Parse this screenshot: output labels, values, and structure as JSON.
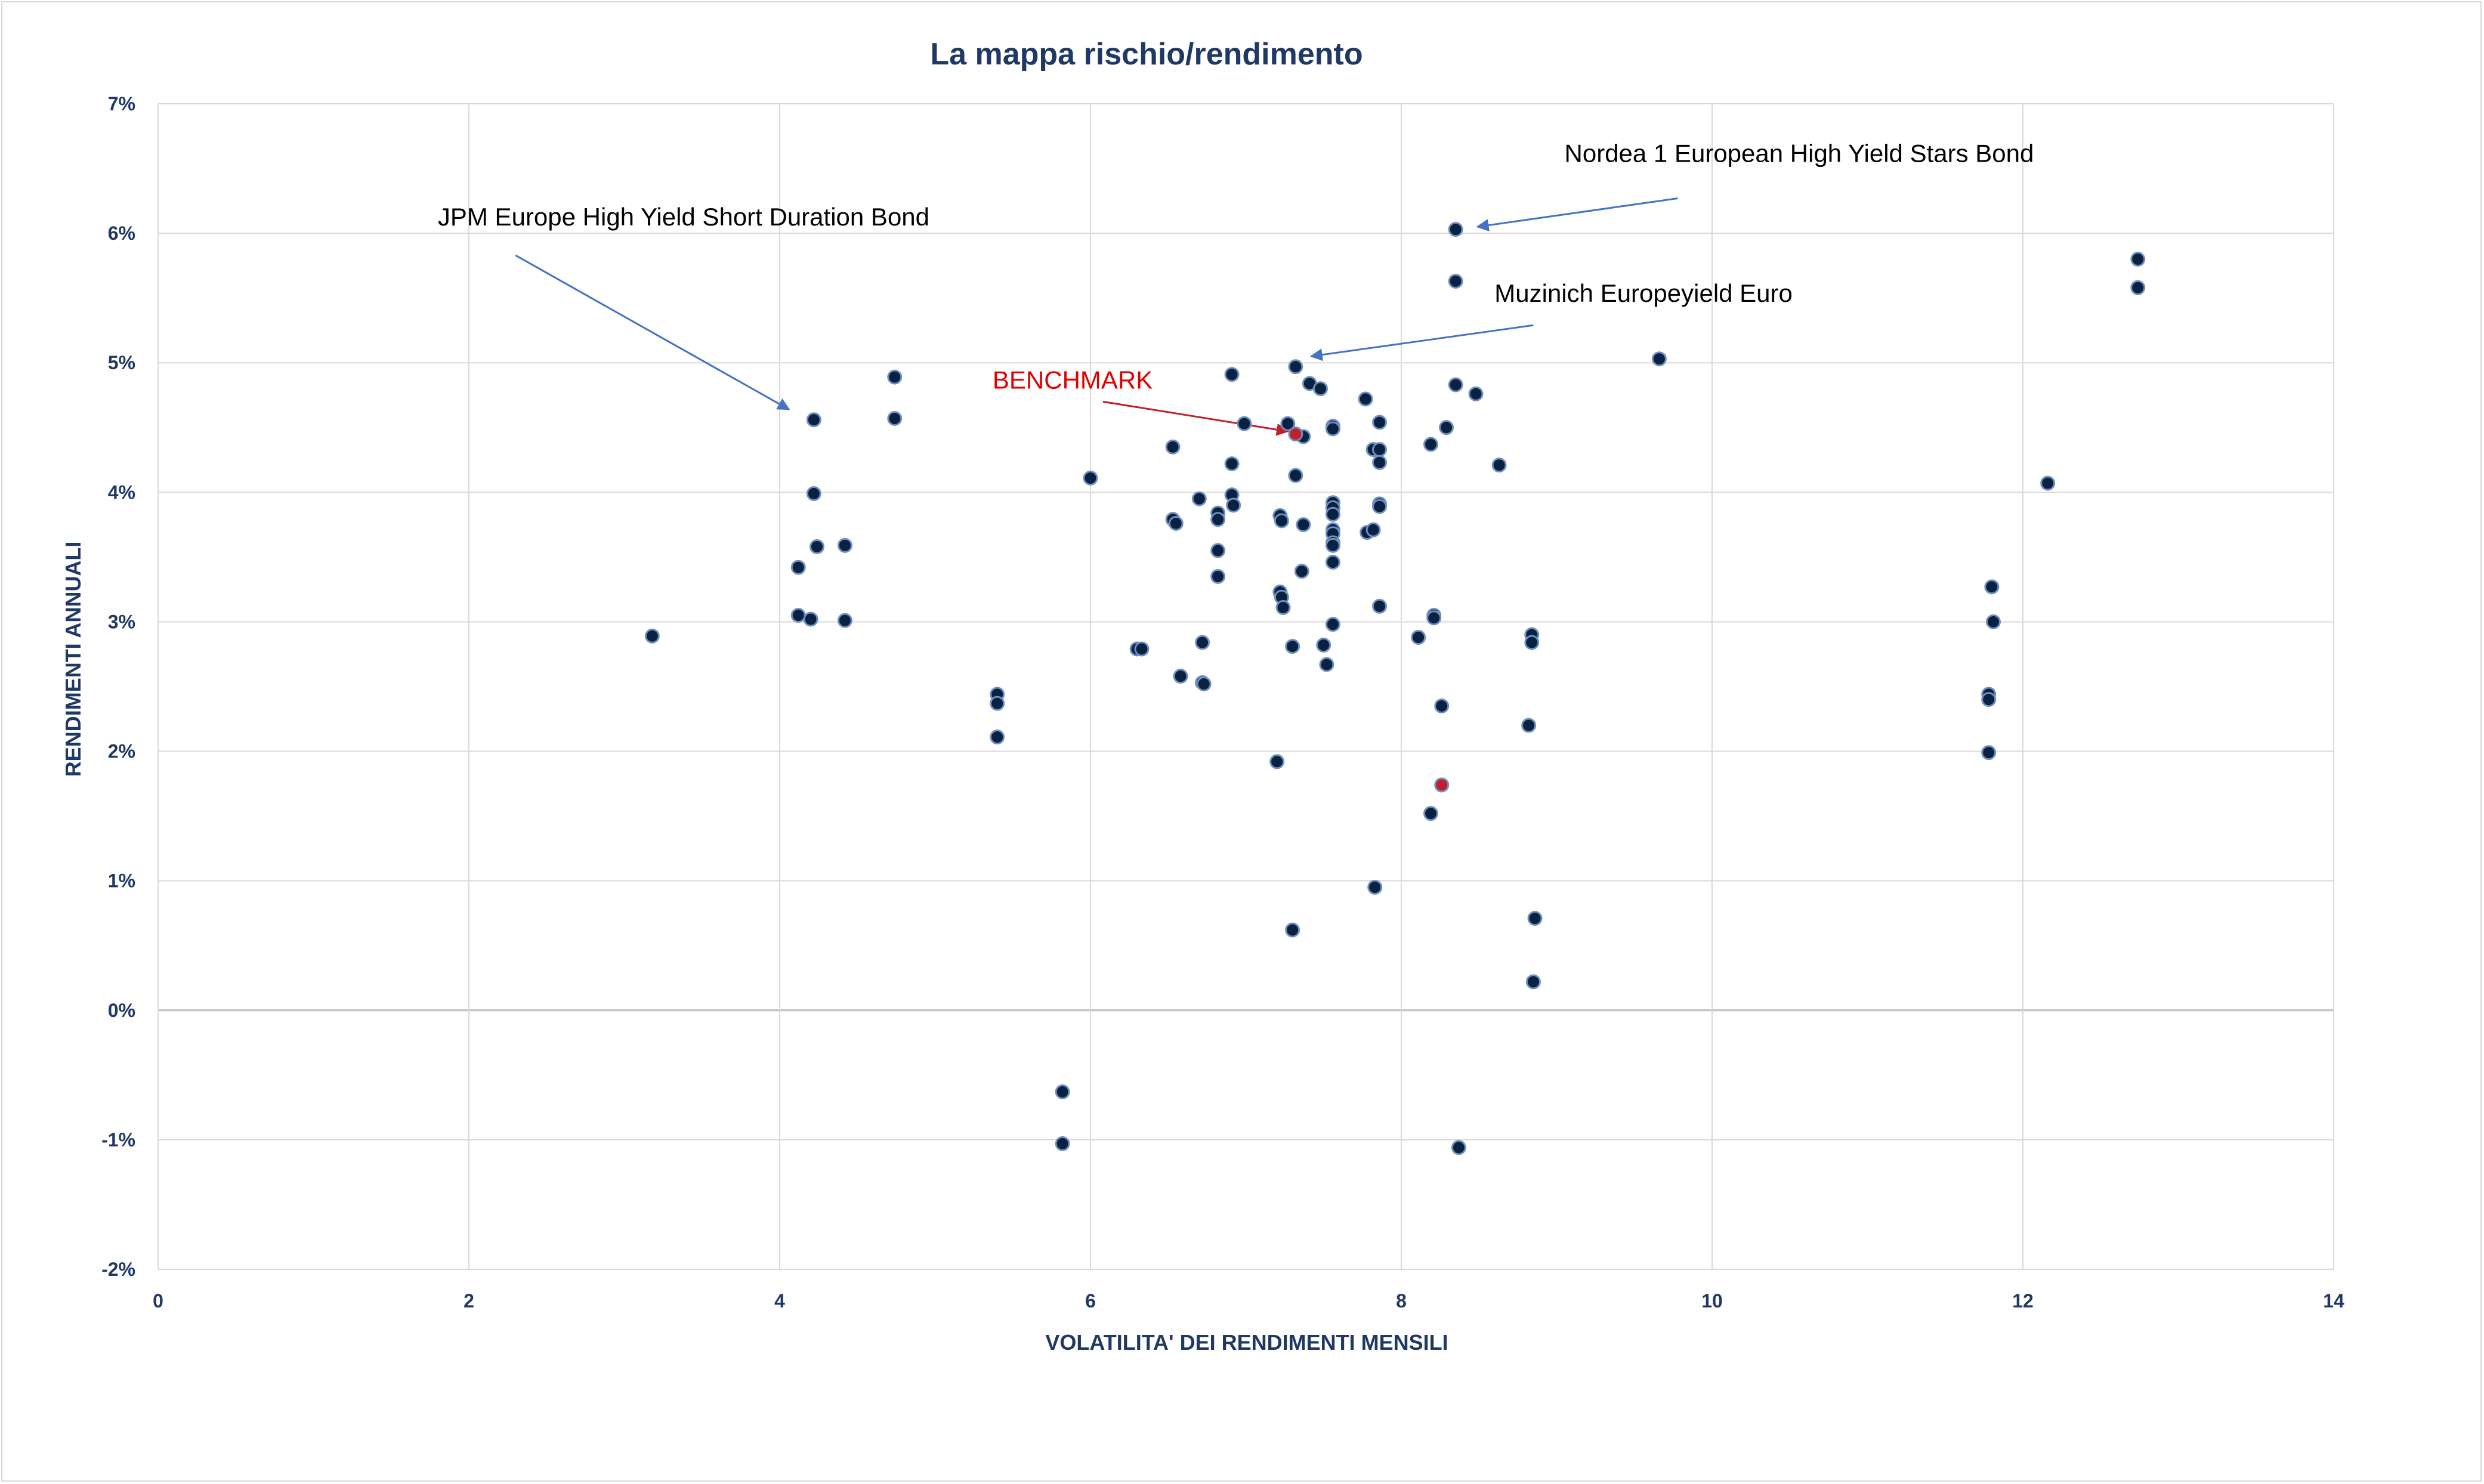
{
  "chart_data": {
    "type": "scatter",
    "title": "La mappa rischio/rendimento",
    "xlabel": "VOLATILITA' DEI RENDIMENTI MENSILI",
    "ylabel": "RENDIMENTI ANNUALI",
    "xlim": [
      0,
      14
    ],
    "ylim": [
      -2,
      7
    ],
    "x_ticks": [
      0,
      2,
      4,
      6,
      8,
      10,
      12,
      14
    ],
    "x_tick_labels": [
      "0",
      "2",
      "4",
      "6",
      "8",
      "10",
      "12",
      "14"
    ],
    "y_ticks": [
      -2,
      -1,
      0,
      1,
      2,
      3,
      4,
      5,
      6,
      7
    ],
    "y_tick_labels": [
      "-2%",
      "-1%",
      "0%",
      "1%",
      "2%",
      "3%",
      "4%",
      "5%",
      "6%",
      "7%"
    ],
    "grid": true,
    "legend": "none",
    "colors": {
      "point_fill": "#0b2140",
      "point_edge": "#6f8fc2",
      "highlight_fill": "#c0202a",
      "gridline": "#d9d9d9",
      "zero_line": "#bfbfbf",
      "axis_text": "#1f3864",
      "arrow_blue": "#4472c4",
      "arrow_red": "#c0202a",
      "annotation_red": "#e00000"
    },
    "points": [
      {
        "x": 3.18,
        "y": 2.89
      },
      {
        "x": 4.12,
        "y": 3.42
      },
      {
        "x": 4.12,
        "y": 3.05
      },
      {
        "x": 4.2,
        "y": 3.02
      },
      {
        "x": 4.22,
        "y": 4.56
      },
      {
        "x": 4.22,
        "y": 3.99
      },
      {
        "x": 4.24,
        "y": 3.58
      },
      {
        "x": 4.42,
        "y": 3.59
      },
      {
        "x": 4.42,
        "y": 3.01
      },
      {
        "x": 4.74,
        "y": 4.89
      },
      {
        "x": 4.74,
        "y": 4.57
      },
      {
        "x": 5.4,
        "y": 2.44
      },
      {
        "x": 5.4,
        "y": 2.37
      },
      {
        "x": 5.4,
        "y": 2.11
      },
      {
        "x": 5.82,
        "y": -0.63
      },
      {
        "x": 5.82,
        "y": -1.03
      },
      {
        "x": 6.0,
        "y": 4.11
      },
      {
        "x": 6.3,
        "y": 2.79
      },
      {
        "x": 6.33,
        "y": 2.79
      },
      {
        "x": 6.53,
        "y": 4.35
      },
      {
        "x": 6.53,
        "y": 3.79
      },
      {
        "x": 6.55,
        "y": 3.76
      },
      {
        "x": 6.58,
        "y": 2.58
      },
      {
        "x": 6.7,
        "y": 3.95
      },
      {
        "x": 6.72,
        "y": 2.84
      },
      {
        "x": 6.72,
        "y": 2.53
      },
      {
        "x": 6.73,
        "y": 2.52
      },
      {
        "x": 6.82,
        "y": 3.84
      },
      {
        "x": 6.82,
        "y": 3.79
      },
      {
        "x": 6.82,
        "y": 3.55
      },
      {
        "x": 6.82,
        "y": 3.35
      },
      {
        "x": 6.91,
        "y": 4.91
      },
      {
        "x": 6.91,
        "y": 4.22
      },
      {
        "x": 6.91,
        "y": 3.98
      },
      {
        "x": 6.92,
        "y": 3.9
      },
      {
        "x": 6.99,
        "y": 4.53
      },
      {
        "x": 7.2,
        "y": 1.92
      },
      {
        "x": 7.22,
        "y": 3.82
      },
      {
        "x": 7.23,
        "y": 3.78
      },
      {
        "x": 7.22,
        "y": 3.23
      },
      {
        "x": 7.23,
        "y": 3.19
      },
      {
        "x": 7.24,
        "y": 3.11
      },
      {
        "x": 7.27,
        "y": 4.53
      },
      {
        "x": 7.3,
        "y": 2.81
      },
      {
        "x": 7.3,
        "y": 0.62
      },
      {
        "x": 7.32,
        "y": 4.97
      },
      {
        "x": 7.32,
        "y": 4.13
      },
      {
        "x": 7.37,
        "y": 4.43
      },
      {
        "x": 7.37,
        "y": 3.75
      },
      {
        "x": 7.36,
        "y": 3.39
      },
      {
        "x": 7.41,
        "y": 4.84
      },
      {
        "x": 7.48,
        "y": 4.8
      },
      {
        "x": 7.5,
        "y": 2.82
      },
      {
        "x": 7.52,
        "y": 2.67
      },
      {
        "x": 7.56,
        "y": 4.51
      },
      {
        "x": 7.56,
        "y": 4.49
      },
      {
        "x": 7.56,
        "y": 3.92
      },
      {
        "x": 7.56,
        "y": 3.88
      },
      {
        "x": 7.56,
        "y": 3.83
      },
      {
        "x": 7.56,
        "y": 3.71
      },
      {
        "x": 7.56,
        "y": 3.68
      },
      {
        "x": 7.56,
        "y": 3.61
      },
      {
        "x": 7.56,
        "y": 3.59
      },
      {
        "x": 7.56,
        "y": 3.46
      },
      {
        "x": 7.56,
        "y": 2.98
      },
      {
        "x": 7.77,
        "y": 4.72
      },
      {
        "x": 7.78,
        "y": 3.69
      },
      {
        "x": 7.82,
        "y": 4.33
      },
      {
        "x": 7.82,
        "y": 3.71
      },
      {
        "x": 7.83,
        "y": 0.95
      },
      {
        "x": 7.86,
        "y": 4.54
      },
      {
        "x": 7.86,
        "y": 4.33
      },
      {
        "x": 7.86,
        "y": 4.23
      },
      {
        "x": 7.86,
        "y": 3.91
      },
      {
        "x": 7.86,
        "y": 3.89
      },
      {
        "x": 7.86,
        "y": 3.12
      },
      {
        "x": 8.11,
        "y": 2.88
      },
      {
        "x": 8.19,
        "y": 4.37
      },
      {
        "x": 8.19,
        "y": 1.52
      },
      {
        "x": 8.21,
        "y": 3.05
      },
      {
        "x": 8.21,
        "y": 3.03
      },
      {
        "x": 8.26,
        "y": 2.35
      },
      {
        "x": 8.29,
        "y": 4.5
      },
      {
        "x": 8.35,
        "y": 6.03
      },
      {
        "x": 8.35,
        "y": 5.63
      },
      {
        "x": 8.35,
        "y": 4.83
      },
      {
        "x": 8.37,
        "y": -1.06
      },
      {
        "x": 8.48,
        "y": 4.76
      },
      {
        "x": 8.63,
        "y": 4.21
      },
      {
        "x": 8.82,
        "y": 2.2
      },
      {
        "x": 8.84,
        "y": 2.9
      },
      {
        "x": 8.84,
        "y": 2.84
      },
      {
        "x": 8.85,
        "y": 0.22
      },
      {
        "x": 8.86,
        "y": 0.71
      },
      {
        "x": 9.66,
        "y": 5.03
      },
      {
        "x": 11.78,
        "y": 2.44
      },
      {
        "x": 11.78,
        "y": 2.4
      },
      {
        "x": 11.78,
        "y": 1.99
      },
      {
        "x": 11.8,
        "y": 3.27
      },
      {
        "x": 11.81,
        "y": 3.0
      },
      {
        "x": 12.16,
        "y": 4.07
      },
      {
        "x": 12.74,
        "y": 5.8
      },
      {
        "x": 12.74,
        "y": 5.58
      }
    ],
    "highlighted_points": [
      {
        "x": 7.32,
        "y": 4.45
      },
      {
        "x": 8.26,
        "y": 1.74
      }
    ],
    "annotations": [
      {
        "text": "Nordea 1 European High Yield Stars Bond",
        "label_x": 9.05,
        "label_y": 6.55,
        "color": "black",
        "arrow": {
          "from": [
            9.78,
            6.27
          ],
          "to": [
            8.49,
            6.05
          ],
          "color": "blue"
        }
      },
      {
        "text": "JPM Europe High Yield Short Duration Bond",
        "label_x": 1.8,
        "label_y": 6.06,
        "color": "black",
        "arrow": {
          "from": [
            2.3,
            5.83
          ],
          "to": [
            4.06,
            4.64
          ],
          "color": "blue"
        }
      },
      {
        "text": "Muzinich Europeyield Euro",
        "label_x": 8.6,
        "label_y": 5.47,
        "color": "black",
        "arrow": {
          "from": [
            8.85,
            5.29
          ],
          "to": [
            7.42,
            5.05
          ],
          "color": "blue"
        }
      },
      {
        "text": "BENCHMARK",
        "label_x": 5.37,
        "label_y": 4.8,
        "color": "red",
        "arrow": {
          "from": [
            6.08,
            4.7
          ],
          "to": [
            7.27,
            4.47
          ],
          "color": "red"
        }
      }
    ]
  }
}
